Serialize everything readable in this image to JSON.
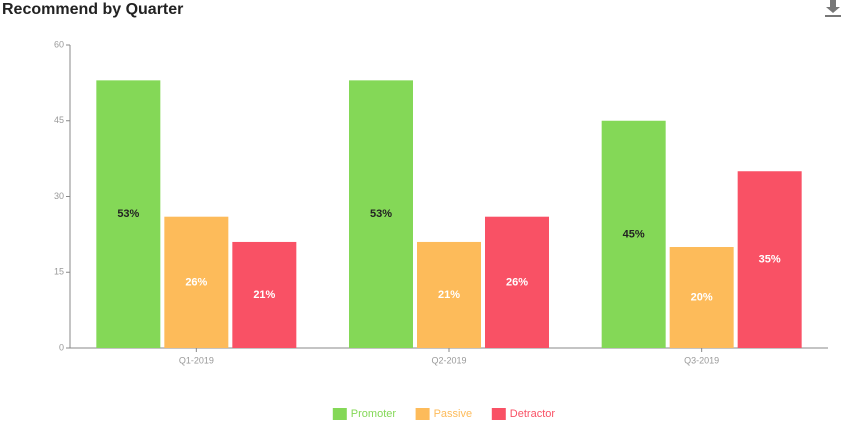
{
  "chart_data": {
    "type": "bar",
    "title": "Recommend by Quarter",
    "categories": [
      "Q1-2019",
      "Q2-2019",
      "Q3-2019"
    ],
    "series": [
      {
        "name": "Promoter",
        "color": "#84d857",
        "label_color": "#222222",
        "values": [
          53,
          53,
          45
        ],
        "value_labels": [
          "53%",
          "53%",
          "45%"
        ]
      },
      {
        "name": "Passive",
        "color": "#fdbb5a",
        "label_color": "#ffffff",
        "values": [
          26,
          21,
          20
        ],
        "value_labels": [
          "26%",
          "21%",
          "20%"
        ]
      },
      {
        "name": "Detractor",
        "color": "#f95165",
        "label_color": "#ffffff",
        "values": [
          21,
          26,
          35
        ],
        "value_labels": [
          "21%",
          "26%",
          "35%"
        ]
      }
    ],
    "ylim": [
      0,
      60
    ],
    "yticks": [
      0,
      15,
      30,
      45,
      60
    ],
    "grid": false,
    "legend": "bottom"
  }
}
